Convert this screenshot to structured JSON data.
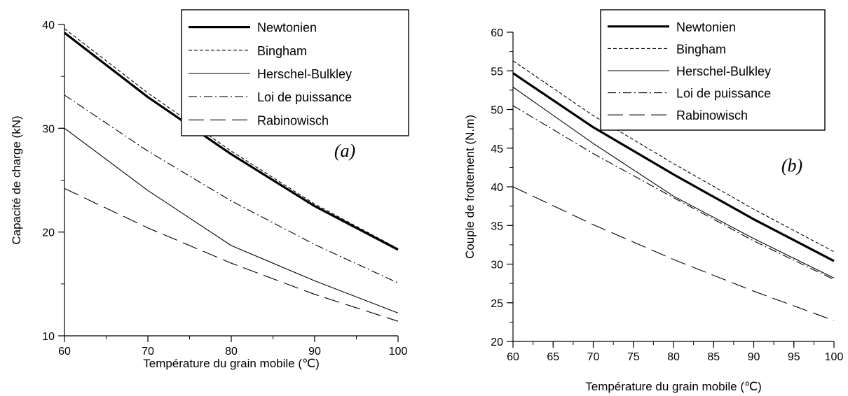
{
  "chart_data": [
    {
      "type": "line",
      "panel_label": "(a)",
      "xlabel": "Température du grain mobile (℃)",
      "ylabel": "Capacité de charge (kN)",
      "xlim": [
        60,
        100
      ],
      "ylim": [
        10,
        40
      ],
      "xticks": [
        60,
        70,
        80,
        90,
        100
      ],
      "yticks": [
        10,
        20,
        30,
        40
      ],
      "x_minor_step": 5,
      "y_minor_step": 5,
      "grid": false,
      "legend_position": "top-right",
      "x": [
        60,
        70,
        80,
        90,
        100
      ],
      "series": [
        {
          "name": "Newtonien",
          "style": "thick",
          "values": [
            39.2,
            33.0,
            27.5,
            22.5,
            18.3
          ]
        },
        {
          "name": "Bingham",
          "style": "dotted",
          "values": [
            39.6,
            33.4,
            27.8,
            22.7,
            18.4
          ]
        },
        {
          "name": "Herschel-Bulkley",
          "style": "thin",
          "values": [
            30.0,
            24.0,
            18.7,
            15.3,
            12.2
          ]
        },
        {
          "name": "Loi de puissance",
          "style": "dashdot",
          "values": [
            33.2,
            27.8,
            23.0,
            18.8,
            15.1
          ]
        },
        {
          "name": "Rabinowisch",
          "style": "longdash",
          "values": [
            24.2,
            20.4,
            17.0,
            14.0,
            11.4
          ]
        }
      ]
    },
    {
      "type": "line",
      "panel_label": "(b)",
      "xlabel": "Température du grain mobile (℃)",
      "ylabel": "Couple de frottement (N.m)",
      "xlim": [
        60,
        100
      ],
      "ylim": [
        20,
        60
      ],
      "xticks": [
        60,
        65,
        70,
        75,
        80,
        85,
        90,
        95,
        100
      ],
      "yticks": [
        20,
        25,
        30,
        35,
        40,
        45,
        50,
        55,
        60
      ],
      "x_minor_step": 2.5,
      "y_minor_step": 2.5,
      "grid": false,
      "legend_position": "top-right",
      "x": [
        60,
        70,
        80,
        90,
        100
      ],
      "series": [
        {
          "name": "Newtonien",
          "style": "thick",
          "values": [
            54.7,
            47.7,
            41.6,
            35.8,
            30.4
          ]
        },
        {
          "name": "Bingham",
          "style": "dotted",
          "values": [
            56.3,
            49.2,
            43.0,
            37.1,
            31.6
          ]
        },
        {
          "name": "Herschel-Bulkley",
          "style": "thin",
          "values": [
            52.9,
            45.6,
            38.8,
            33.3,
            28.2
          ]
        },
        {
          "name": "Loi de puissance",
          "style": "dashdot",
          "values": [
            50.5,
            44.3,
            38.6,
            33.0,
            28.0
          ]
        },
        {
          "name": "Rabinowisch",
          "style": "longdash",
          "values": [
            40.0,
            35.1,
            30.6,
            26.5,
            22.7
          ]
        }
      ]
    }
  ]
}
